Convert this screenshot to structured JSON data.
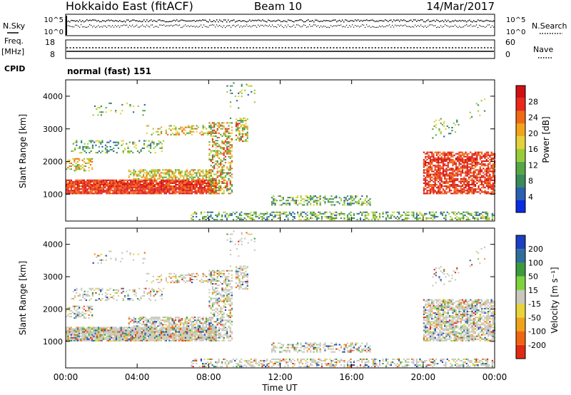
{
  "header": {
    "station": "Hokkaido East (fitACF)",
    "beam": "Beam 10",
    "date": "14/Mar/2017"
  },
  "top_strip": {
    "nsky_label": "N.Sky",
    "nsearch_label": "N.Search",
    "nsky_ticks": [
      "10^5",
      "10^0"
    ],
    "nsearch_ticks": [
      "10^5",
      "10^0"
    ],
    "freq_label": "Freq.",
    "freq_unit": "[MHz]",
    "freq_ticks": [
      "18",
      "8"
    ],
    "nave_label": "Nave",
    "nave_ticks": [
      "60",
      "0"
    ],
    "cpid_label": "CPID",
    "cpid_value": "normal (fast) 151"
  },
  "chart_data": [
    {
      "type": "heatmap",
      "name": "power",
      "ylabel": "Slant Range [km]",
      "yticks": [
        "1000",
        "2000",
        "3000",
        "4000"
      ],
      "ylim": [
        180,
        4500
      ],
      "xlim": [
        0,
        24
      ],
      "colorbar_label": "Power [dB]",
      "colorbar_ticks": [
        "4",
        "8",
        "12",
        "16",
        "20",
        "24",
        "28"
      ],
      "colors": [
        "#0a2de0",
        "#2b5fb0",
        "#3a8a5a",
        "#55a845",
        "#9acc3a",
        "#e3d23c",
        "#f2a51c",
        "#f06a12",
        "#e8291b",
        "#d10f12"
      ]
    },
    {
      "type": "heatmap",
      "name": "velocity",
      "ylabel": "Slant Range [km]",
      "yticks": [
        "1000",
        "2000",
        "3000",
        "4000"
      ],
      "ylim": [
        180,
        4500
      ],
      "xlim": [
        0,
        24
      ],
      "colorbar_label": "Velocity [m s⁻¹]",
      "colorbar_ticks": [
        "200",
        "100",
        "50",
        "15",
        "-15",
        "-50",
        "-100",
        "-200"
      ],
      "colors": [
        "#1a3fc0",
        "#2f6e9a",
        "#3d9a3d",
        "#7ed23c",
        "#c8c8be",
        "#e8d43a",
        "#f0a21a",
        "#f06512",
        "#e02a14"
      ],
      "xlabel": "Time UT",
      "xticks": [
        "00:00",
        "04:00",
        "08:00",
        "12:00",
        "16:00",
        "20:00",
        "00:00"
      ]
    }
  ]
}
